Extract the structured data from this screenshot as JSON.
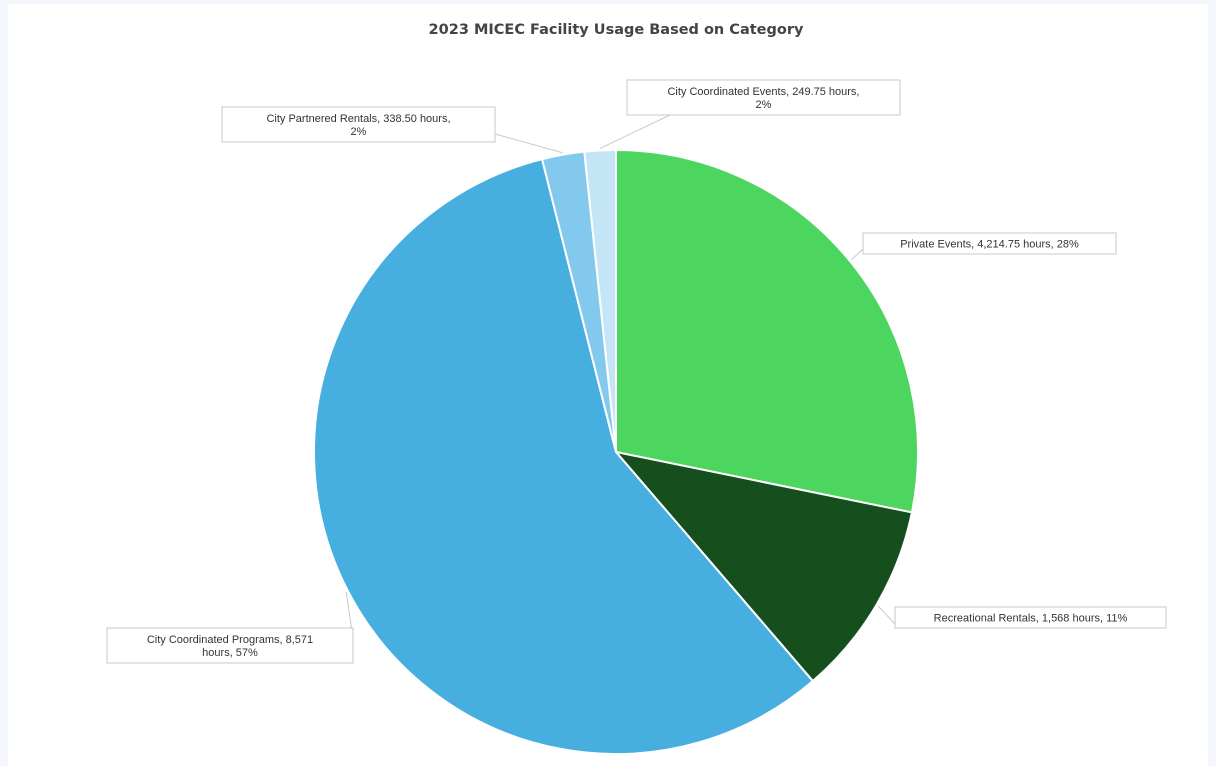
{
  "chart_data": {
    "type": "pie",
    "title": "2023 MICEC Facility Usage Based on Category",
    "unit": "hours",
    "start_angle_deg": 0,
    "direction": "clockwise",
    "slices": [
      {
        "name": "Private Events",
        "value": 4214.75,
        "percent": 28,
        "color": "#4cd65f",
        "label_lines": [
          "Private Events, 4,214.75 hours, 28%"
        ]
      },
      {
        "name": "Recreational Rentals",
        "value": 1568,
        "percent": 11,
        "color": "#154f1d",
        "label_lines": [
          "Recreational Rentals, 1,568 hours, 11%"
        ]
      },
      {
        "name": "City Coordinated Programs",
        "value": 8571,
        "percent": 57,
        "color": "#47aee0",
        "label_lines": [
          "City Coordinated Programs, 8,571",
          "hours, 57%"
        ]
      },
      {
        "name": "City Partnered Rentals",
        "value": 338.5,
        "percent": 2,
        "color": "#83c9ed",
        "label_lines": [
          "City Partnered Rentals, 338.50 hours,",
          "2%"
        ]
      },
      {
        "name": "City Coordinated Events",
        "value": 249.75,
        "percent": 2,
        "color": "#c4e5f6",
        "label_lines": [
          "City Coordinated Events, 249.75 hours,",
          "2%"
        ]
      }
    ]
  }
}
